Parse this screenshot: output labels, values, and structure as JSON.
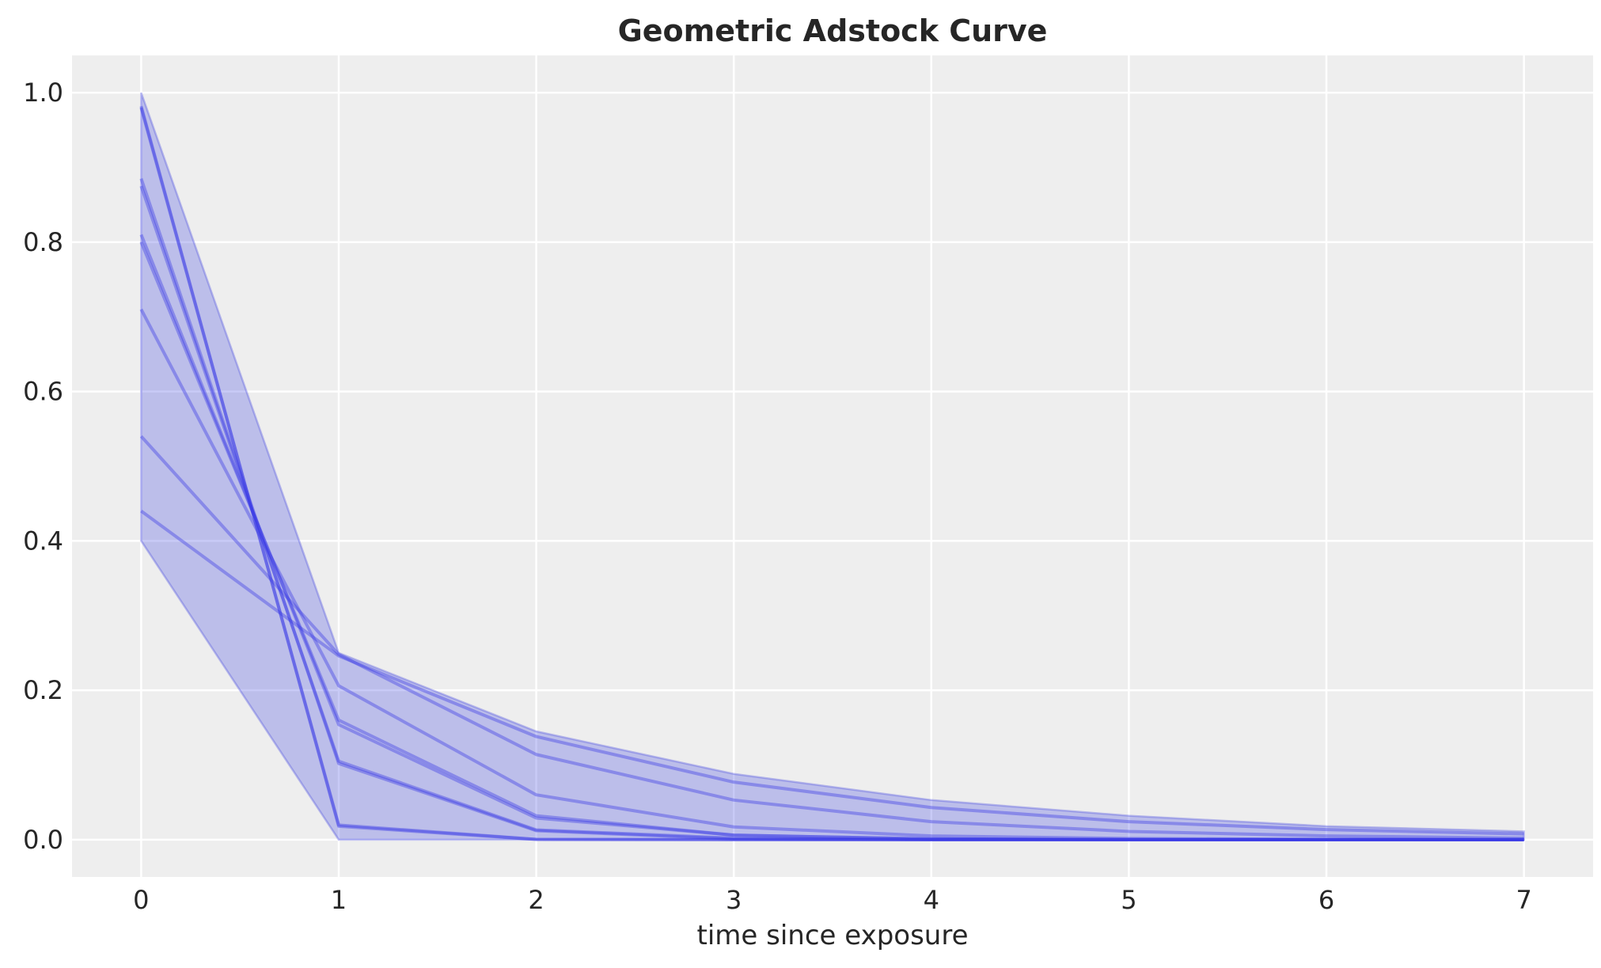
{
  "chart_data": {
    "type": "line",
    "title": "Geometric Adstock Curve",
    "xlabel": "time since exposure",
    "ylabel": "",
    "x": [
      0,
      1,
      2,
      3,
      4,
      5,
      6,
      7
    ],
    "xlim": [
      -0.35,
      7.35
    ],
    "ylim": [
      -0.05,
      1.05
    ],
    "xticks": [
      "0",
      "1",
      "2",
      "3",
      "4",
      "5",
      "6",
      "7"
    ],
    "yticks": [
      "0.0",
      "0.2",
      "0.4",
      "0.6",
      "0.8",
      "1.0"
    ],
    "ytick_values": [
      0,
      0.2,
      0.4,
      0.6,
      0.8,
      1.0
    ],
    "grid": true,
    "legend": "none",
    "band": {
      "upper": [
        1.0,
        0.25,
        0.145,
        0.088,
        0.053,
        0.032,
        0.018,
        0.011
      ],
      "lower": [
        0.4,
        0.0,
        0.0,
        0.0,
        0.0,
        0.0,
        0.0,
        0.0
      ]
    },
    "series": [
      {
        "values": [
          0.44,
          0.246,
          0.138,
          0.077,
          0.043,
          0.024,
          0.0135,
          0.0076
        ]
      },
      {
        "values": [
          0.54,
          0.248,
          0.114,
          0.053,
          0.024,
          0.011,
          0.005,
          0.002
        ]
      },
      {
        "values": [
          0.71,
          0.206,
          0.06,
          0.017,
          0.005,
          0.0015,
          0.0004,
          0.0001
        ]
      },
      {
        "values": [
          0.8,
          0.16,
          0.032,
          0.006,
          0.001,
          0.0,
          0.0,
          0.0
        ]
      },
      {
        "values": [
          0.81,
          0.154,
          0.029,
          0.006,
          0.001,
          0.0,
          0.0,
          0.0
        ]
      },
      {
        "values": [
          0.875,
          0.105,
          0.013,
          0.002,
          0.0,
          0.0,
          0.0,
          0.0
        ]
      },
      {
        "values": [
          0.885,
          0.102,
          0.012,
          0.001,
          0.0,
          0.0,
          0.0,
          0.0
        ]
      },
      {
        "values": [
          0.98,
          0.0196,
          0.0004,
          0.0,
          0.0,
          0.0,
          0.0,
          0.0
        ]
      },
      {
        "values": [
          0.982,
          0.018,
          0.0003,
          0.0,
          0.0,
          0.0,
          0.0,
          0.0
        ]
      }
    ],
    "colors": {
      "line": "#3a3ae6",
      "band": "#4a4ee0",
      "plot_background": "#eeeeee",
      "grid": "#ffffff",
      "text": "#262626"
    }
  }
}
